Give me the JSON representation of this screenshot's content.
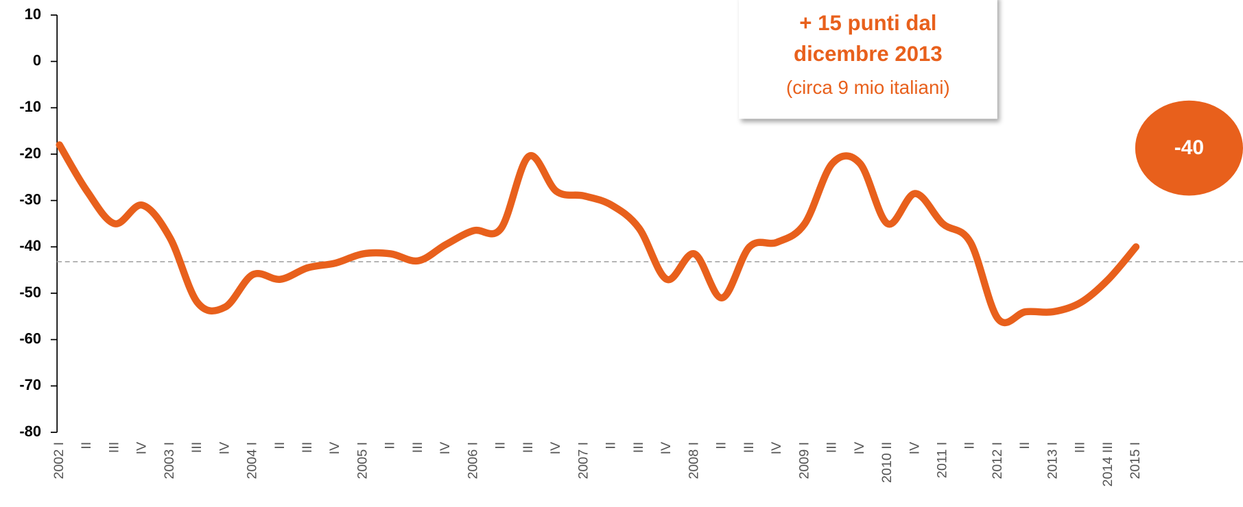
{
  "chart_data": {
    "type": "line",
    "categories": [
      "2002 I",
      "II",
      "III",
      "IV",
      "2003 I",
      "III",
      "IV",
      "2004 I",
      "II",
      "III",
      "IV",
      "2005 I",
      "II",
      "III",
      "IV",
      "2006 I",
      "II",
      "III",
      "IV",
      "2007 I",
      "II",
      "III",
      "IV",
      "2008 I",
      "II",
      "III",
      "IV",
      "2009 I",
      "III",
      "IV",
      "2010 II",
      "IV",
      "2011 I",
      "II",
      "2012 I",
      "II",
      "2013 I",
      "III",
      "2014 III",
      "2015 I"
    ],
    "series": [
      {
        "color": "#e8601c",
        "values": [
          -18,
          -28,
          -35,
          -31,
          -38,
          -52,
          -53,
          -46,
          -47,
          -44.5,
          -43.5,
          -41.5,
          -41.5,
          -43,
          -39.5,
          -36.5,
          -36,
          -20.5,
          -28,
          -29,
          -31,
          -36,
          -47,
          -41.5,
          -51,
          -40,
          -39,
          -35,
          -22,
          -22,
          -35,
          -28.5,
          -35,
          -39,
          -55.5,
          -54,
          -54,
          -52,
          -47,
          -40
        ]
      }
    ],
    "reference_line": -43.2,
    "ylim": [
      -80,
      10
    ],
    "yticks": [
      -80,
      -70,
      -60,
      -50,
      -40,
      -30,
      -20,
      -10,
      0,
      10
    ],
    "annotation": [
      "+ 15 punti dal",
      "dicembre 2013",
      "(circa 9 mio italiani)"
    ],
    "callout": "-40"
  }
}
